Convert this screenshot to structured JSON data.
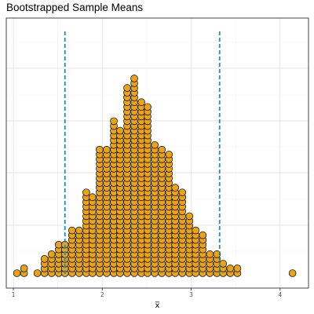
{
  "chart_data": {
    "type": "dotplot",
    "title": "Bootstrapped Sample Means",
    "xlabel": "x̅",
    "ylabel": "",
    "xlim": [
      0.92,
      4.32
    ],
    "xticks": [
      "1",
      "2",
      "3",
      "4"
    ],
    "xtick_values": [
      1,
      2,
      3,
      4
    ],
    "bin_width": 0.0866,
    "stack_spacing": 0.01635,
    "points": [
      {
        "x": 1.04,
        "count": 1
      },
      {
        "x": 1.12,
        "count": 2
      },
      {
        "x": 1.27,
        "count": 1
      },
      {
        "x": 1.35,
        "count": 4
      },
      {
        "x": 1.43,
        "count": 5
      },
      {
        "x": 1.51,
        "count": 7
      },
      {
        "x": 1.58,
        "count": 7
      },
      {
        "x": 1.66,
        "count": 10
      },
      {
        "x": 1.74,
        "count": 10
      },
      {
        "x": 1.82,
        "count": 18
      },
      {
        "x": 1.89,
        "count": 17
      },
      {
        "x": 1.97,
        "count": 27
      },
      {
        "x": 2.05,
        "count": 27
      },
      {
        "x": 2.13,
        "count": 33
      },
      {
        "x": 2.2,
        "count": 31
      },
      {
        "x": 2.28,
        "count": 40
      },
      {
        "x": 2.36,
        "count": 42
      },
      {
        "x": 2.44,
        "count": 37
      },
      {
        "x": 2.51,
        "count": 36
      },
      {
        "x": 2.59,
        "count": 28
      },
      {
        "x": 2.67,
        "count": 27
      },
      {
        "x": 2.75,
        "count": 26
      },
      {
        "x": 2.82,
        "count": 19
      },
      {
        "x": 2.9,
        "count": 18
      },
      {
        "x": 2.98,
        "count": 13
      },
      {
        "x": 3.05,
        "count": 10
      },
      {
        "x": 3.13,
        "count": 9
      },
      {
        "x": 3.21,
        "count": 5
      },
      {
        "x": 3.29,
        "count": 5
      },
      {
        "x": 3.36,
        "count": 3
      },
      {
        "x": 3.44,
        "count": 2
      },
      {
        "x": 3.52,
        "count": 2
      },
      {
        "x": 4.14,
        "count": 1
      }
    ],
    "reference_lines": [
      {
        "x": 1.58,
        "style": "dashed",
        "color": "#1f8cb5"
      },
      {
        "x": 3.32,
        "style": "dashed",
        "color": "#1f8cb5"
      }
    ],
    "dot_fill": "#e8a318",
    "dot_edge": "#000000",
    "grid": true,
    "legend": "none"
  }
}
